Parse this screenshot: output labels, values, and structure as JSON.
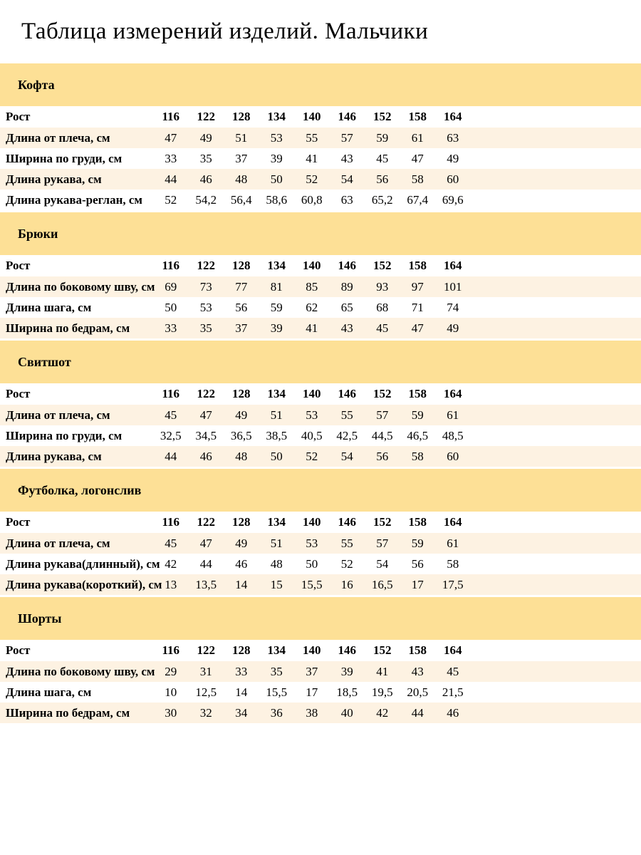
{
  "title": "Таблица измерений изделий. Мальчики",
  "colors": {
    "section_band": "#FDE096",
    "row_alternate": "#FDF2E2",
    "text": "#000000",
    "background": "#FFFFFF"
  },
  "sections": [
    {
      "name": "Кофта",
      "height_label": "Рост",
      "heights": [
        "116",
        "122",
        "128",
        "134",
        "140",
        "146",
        "152",
        "158",
        "164"
      ],
      "rows": [
        {
          "label": "Длина от плеча, см",
          "values": [
            "47",
            "49",
            "51",
            "53",
            "55",
            "57",
            "59",
            "61",
            "63"
          ]
        },
        {
          "label": "Ширина по груди, см",
          "values": [
            "33",
            "35",
            "37",
            "39",
            "41",
            "43",
            "45",
            "47",
            "49"
          ]
        },
        {
          "label": "Длина рукава, см",
          "values": [
            "44",
            "46",
            "48",
            "50",
            "52",
            "54",
            "56",
            "58",
            "60"
          ]
        },
        {
          "label": "Длина рукава-реглан, см",
          "values": [
            "52",
            "54,2",
            "56,4",
            "58,6",
            "60,8",
            "63",
            "65,2",
            "67,4",
            "69,6"
          ]
        }
      ]
    },
    {
      "name": "Брюки",
      "height_label": "Рост",
      "heights": [
        "116",
        "122",
        "128",
        "134",
        "140",
        "146",
        "152",
        "158",
        "164"
      ],
      "rows": [
        {
          "label": "Длина по боковому шву, см",
          "values": [
            "69",
            "73",
            "77",
            "81",
            "85",
            "89",
            "93",
            "97",
            "101"
          ]
        },
        {
          "label": "Длина шага, см",
          "values": [
            "50",
            "53",
            "56",
            "59",
            "62",
            "65",
            "68",
            "71",
            "74"
          ]
        },
        {
          "label": "Ширина по бедрам, см",
          "values": [
            "33",
            "35",
            "37",
            "39",
            "41",
            "43",
            "45",
            "47",
            "49"
          ]
        }
      ]
    },
    {
      "name": "Свитшот",
      "height_label": "Рост",
      "heights": [
        "116",
        "122",
        "128",
        "134",
        "140",
        "146",
        "152",
        "158",
        "164"
      ],
      "rows": [
        {
          "label": "Длина от плеча, см",
          "values": [
            "45",
            "47",
            "49",
            "51",
            "53",
            "55",
            "57",
            "59",
            "61"
          ]
        },
        {
          "label": "Ширина по груди, см",
          "values": [
            "32,5",
            "34,5",
            "36,5",
            "38,5",
            "40,5",
            "42,5",
            "44,5",
            "46,5",
            "48,5"
          ]
        },
        {
          "label": "Длина рукава, см",
          "values": [
            "44",
            "46",
            "48",
            "50",
            "52",
            "54",
            "56",
            "58",
            "60"
          ]
        }
      ]
    },
    {
      "name": "Футболка, логонслив",
      "height_label": "Рост",
      "heights": [
        "116",
        "122",
        "128",
        "134",
        "140",
        "146",
        "152",
        "158",
        "164"
      ],
      "rows": [
        {
          "label": "Длина от плеча, см",
          "values": [
            "45",
            "47",
            "49",
            "51",
            "53",
            "55",
            "57",
            "59",
            "61"
          ]
        },
        {
          "label": "Длина рукава(длинный), см",
          "values": [
            "42",
            "44",
            "46",
            "48",
            "50",
            "52",
            "54",
            "56",
            "58"
          ]
        },
        {
          "label": "Длина рукава(короткий), см",
          "values": [
            "13",
            "13,5",
            "14",
            "15",
            "15,5",
            "16",
            "16,5",
            "17",
            "17,5"
          ]
        }
      ]
    },
    {
      "name": "Шорты",
      "height_label": "Рост",
      "heights": [
        "116",
        "122",
        "128",
        "134",
        "140",
        "146",
        "152",
        "158",
        "164"
      ],
      "rows": [
        {
          "label": "Длина по боковому шву, см",
          "values": [
            "29",
            "31",
            "33",
            "35",
            "37",
            "39",
            "41",
            "43",
            "45"
          ]
        },
        {
          "label": "Длина шага, см",
          "values": [
            "10",
            "12,5",
            "14",
            "15,5",
            "17",
            "18,5",
            "19,5",
            "20,5",
            "21,5"
          ]
        },
        {
          "label": "Ширина по бедрам, см",
          "values": [
            "30",
            "32",
            "34",
            "36",
            "38",
            "40",
            "42",
            "44",
            "46"
          ]
        }
      ]
    }
  ]
}
